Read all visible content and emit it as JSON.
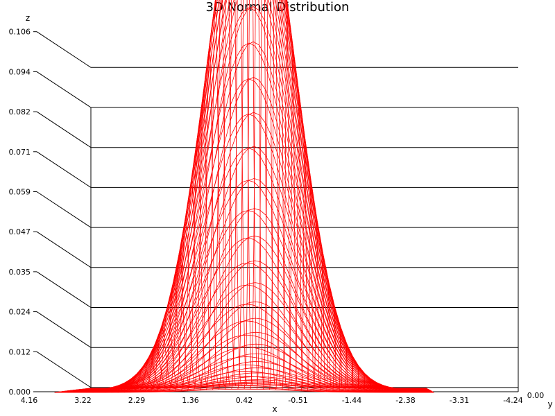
{
  "chart_data": {
    "type": "surface",
    "title": "3D Normal Distribution",
    "xlabel": "x",
    "ylabel": "y",
    "zlabel": "z",
    "z_ticks": [
      "0.000",
      "0.012",
      "0.024",
      "0.035",
      "0.047",
      "0.059",
      "0.071",
      "0.082",
      "0.094",
      "0.106"
    ],
    "x_ticks": [
      "4.16",
      "3.22",
      "2.29",
      "1.36",
      "0.42",
      "-0.51",
      "-1.44",
      "-2.38",
      "-3.31",
      "-4.24"
    ],
    "y_ticks_overlapping": "0.00",
    "zlim": [
      0,
      0.106
    ],
    "xlim": [
      4.16,
      -4.24
    ],
    "peak_z": 0.094,
    "function": "bivariate standard normal density, mean approx (0.2, 0)",
    "mesh_color": "#ff0000",
    "grid": true
  }
}
